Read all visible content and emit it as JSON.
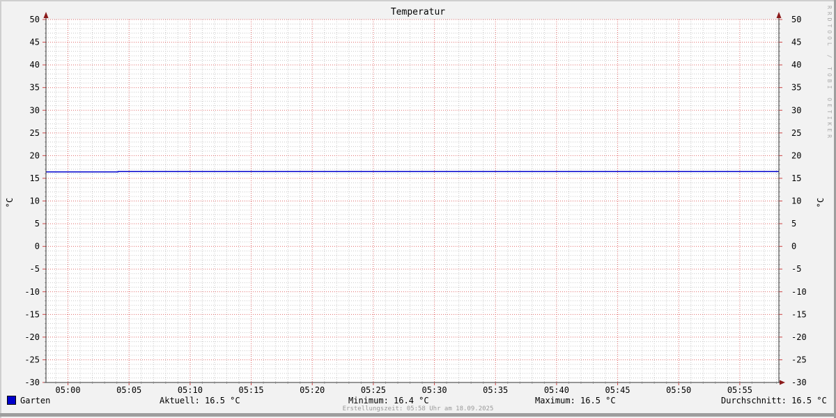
{
  "chart_data": {
    "type": "line",
    "title": "Temperatur",
    "ylabel": "°C",
    "ylim": [
      -30,
      50
    ],
    "y_major_step": 5,
    "y_minor_step": 1,
    "x_window": {
      "start": "04:58",
      "end": "05:58",
      "minutes": 60
    },
    "x_major_step_min": 5,
    "x_minor_step_min": 1,
    "x_first_major_offset_min": 1.8,
    "x_tick_labels": [
      "05:00",
      "05:05",
      "05:10",
      "05:15",
      "05:20",
      "05:25",
      "05:30",
      "05:35",
      "05:40",
      "05:45",
      "05:50",
      "05:55"
    ],
    "grid": {
      "canvas_color": "#ffffff",
      "major_color": "#e06868",
      "minor_color": "#c8c8c8",
      "major_tick_color": "#cc4444",
      "minor_tick_color": "#aaaaaa"
    },
    "axis_color": "#333333",
    "arrow_color": "#8b1a1a",
    "legend_position": "bottom",
    "series": [
      {
        "name": "Garten",
        "color": "#0000cc",
        "points_min_value": [
          [
            0,
            16.4
          ],
          [
            5.9,
            16.4
          ],
          [
            5.9,
            16.5
          ],
          [
            60,
            16.5
          ]
        ],
        "description": "16.4 °C from 04:58 until ~05:04, then constant 16.5 °C until 05:58"
      }
    ]
  },
  "legend": {
    "name": "Garten",
    "color": "#0000cc"
  },
  "stats": {
    "aktuell": "Aktuell: 16.5 °C",
    "minimum": "Minimum: 16.4 °C",
    "maximum": "Maximum: 16.5 °C",
    "durchschnitt": "Durchschnitt: 16.5 °C"
  },
  "footer": {
    "created": "Erstellungszeit: 05:58 Uhr am 18.09.2025"
  },
  "watermark": "RRDTOOL / TOBI OETIKER",
  "colors": {
    "background": "#f2f2f2",
    "bevel_light": "#cfcfcf",
    "bevel_dark": "#9e9e9e",
    "text": "#000000",
    "muted_text": "#999999",
    "watermark_text": "#aaaaaa"
  }
}
